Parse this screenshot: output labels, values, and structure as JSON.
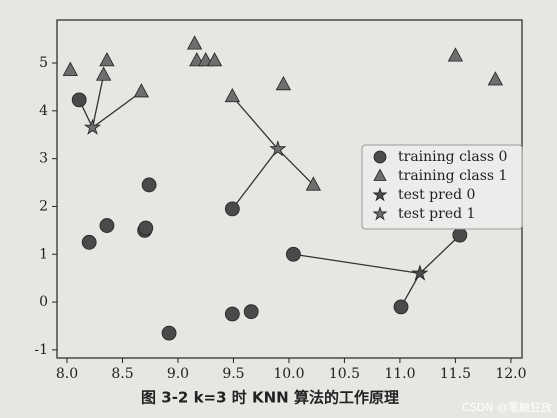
{
  "chart_data": {
    "type": "scatter",
    "caption": "图 3-2   k=3 时 KNN 算法的工作原理",
    "watermark": "CSDN @笔触狂放",
    "xlim": [
      7.91,
      12.1
    ],
    "ylim": [
      -1.17,
      5.9
    ],
    "xticks": [
      {
        "value": 8,
        "label": "8.0"
      },
      8.5,
      {
        "value": 9,
        "label": "9.0"
      },
      9.5,
      {
        "value": 10,
        "label": "10.0"
      },
      10.5,
      {
        "value": 11,
        "label": "11.0"
      },
      11.5,
      {
        "value": 12,
        "label": "12.0"
      }
    ],
    "yticks": [
      -1,
      0,
      1,
      2,
      3,
      4,
      5
    ],
    "legend": "right",
    "series": [
      {
        "name": "training class 0",
        "marker": "circle",
        "color": "#4a4a4a",
        "x": [
          8.11,
          8.2,
          8.36,
          8.7,
          8.71,
          8.74,
          8.92,
          9.49,
          9.49,
          9.66,
          10.04,
          11.01,
          11.54
        ],
        "y": [
          4.23,
          1.25,
          1.6,
          1.5,
          1.55,
          2.45,
          -0.65,
          1.95,
          -0.25,
          -0.2,
          1.0,
          -0.1,
          1.4
        ]
      },
      {
        "name": "training class 1",
        "marker": "triangle",
        "color": "#6e6e6e",
        "x": [
          8.03,
          8.33,
          8.36,
          8.67,
          9.15,
          9.17,
          9.25,
          9.33,
          9.49,
          9.95,
          10.22,
          11.5,
          11.86
        ],
        "y": [
          4.85,
          4.75,
          5.05,
          4.4,
          5.4,
          5.05,
          5.05,
          5.05,
          4.3,
          4.55,
          2.45,
          5.15,
          4.65
        ]
      },
      {
        "name": "test pred 0",
        "marker": "star",
        "color": "#4a4a4a",
        "x": [
          11.18
        ],
        "y": [
          0.6
        ]
      },
      {
        "name": "test pred 1",
        "marker": "star",
        "color": "#6e6e6e",
        "x": [
          8.23,
          9.9
        ],
        "y": [
          3.65,
          3.2
        ]
      }
    ]
  }
}
